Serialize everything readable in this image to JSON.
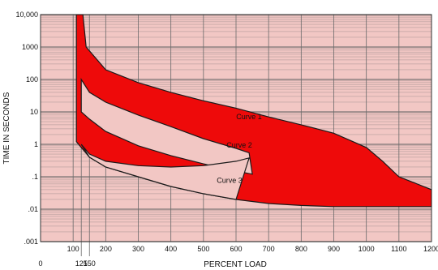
{
  "chart_data": {
    "type": "area",
    "title": "",
    "xlabel": "PERCENT LOAD",
    "ylabel": "TIME IN SECONDS",
    "xlim": [
      0,
      1200
    ],
    "ylim": [
      0.001,
      10000
    ],
    "yscale": "log",
    "grid": true,
    "x_ticks": [
      "0",
      "100",
      "125",
      "150",
      "200",
      "300",
      "400",
      "500",
      "600",
      "700",
      "800",
      "900",
      "1000",
      "1100",
      "1200"
    ],
    "y_ticks": [
      ".001",
      ".01",
      ".1",
      "1",
      "10",
      "100",
      "1000",
      "10,000"
    ],
    "colors": {
      "band": "#ee0a0a",
      "background": "#f2c7c4",
      "grid": "#6a6a6a"
    },
    "series": [
      {
        "name": "Curve 1",
        "upper": [
          [
            130,
            10000
          ],
          [
            140,
            1000
          ],
          [
            200,
            200
          ],
          [
            300,
            80
          ],
          [
            400,
            40
          ],
          [
            500,
            22
          ],
          [
            600,
            13
          ],
          [
            700,
            7
          ],
          [
            800,
            4
          ],
          [
            900,
            2.2
          ],
          [
            1000,
            0.8
          ],
          [
            1050,
            0.3
          ],
          [
            1100,
            0.1
          ],
          [
            1200,
            0.04
          ]
        ],
        "lower": [
          [
            125,
            100
          ],
          [
            150,
            40
          ],
          [
            200,
            20
          ],
          [
            300,
            8
          ],
          [
            400,
            3.5
          ],
          [
            500,
            1.5
          ],
          [
            600,
            0.75
          ],
          [
            640,
            0.55
          ]
        ]
      },
      {
        "name": "Curve 2",
        "upper": [
          [
            125,
            10
          ],
          [
            150,
            6
          ],
          [
            200,
            2.5
          ],
          [
            300,
            0.9
          ],
          [
            400,
            0.45
          ],
          [
            500,
            0.25
          ],
          [
            600,
            0.15
          ],
          [
            650,
            0.12
          ]
        ],
        "lower": [
          [
            125,
            1
          ],
          [
            150,
            0.5
          ],
          [
            200,
            0.3
          ],
          [
            300,
            0.22
          ],
          [
            400,
            0.2
          ],
          [
            500,
            0.22
          ],
          [
            600,
            0.3
          ],
          [
            640,
            0.38
          ]
        ]
      },
      {
        "name": "Curve 3",
        "upper": [
          [
            110,
            10000
          ],
          [
            110,
            1.2
          ],
          [
            150,
            0.4
          ],
          [
            200,
            0.2
          ],
          [
            300,
            0.1
          ],
          [
            400,
            0.05
          ],
          [
            500,
            0.03
          ],
          [
            600,
            0.02
          ],
          [
            700,
            0.015
          ],
          [
            800,
            0.013
          ],
          [
            900,
            0.012
          ],
          [
            1000,
            0.012
          ],
          [
            1100,
            0.012
          ],
          [
            1200,
            0.012
          ]
        ]
      }
    ],
    "curve_labels": [
      {
        "text": "Curve 1",
        "x": 640,
        "y": 6
      },
      {
        "text": "Curve 2",
        "x": 610,
        "y": 0.8
      },
      {
        "text": "Curve 3",
        "x": 580,
        "y": 0.065
      }
    ]
  }
}
